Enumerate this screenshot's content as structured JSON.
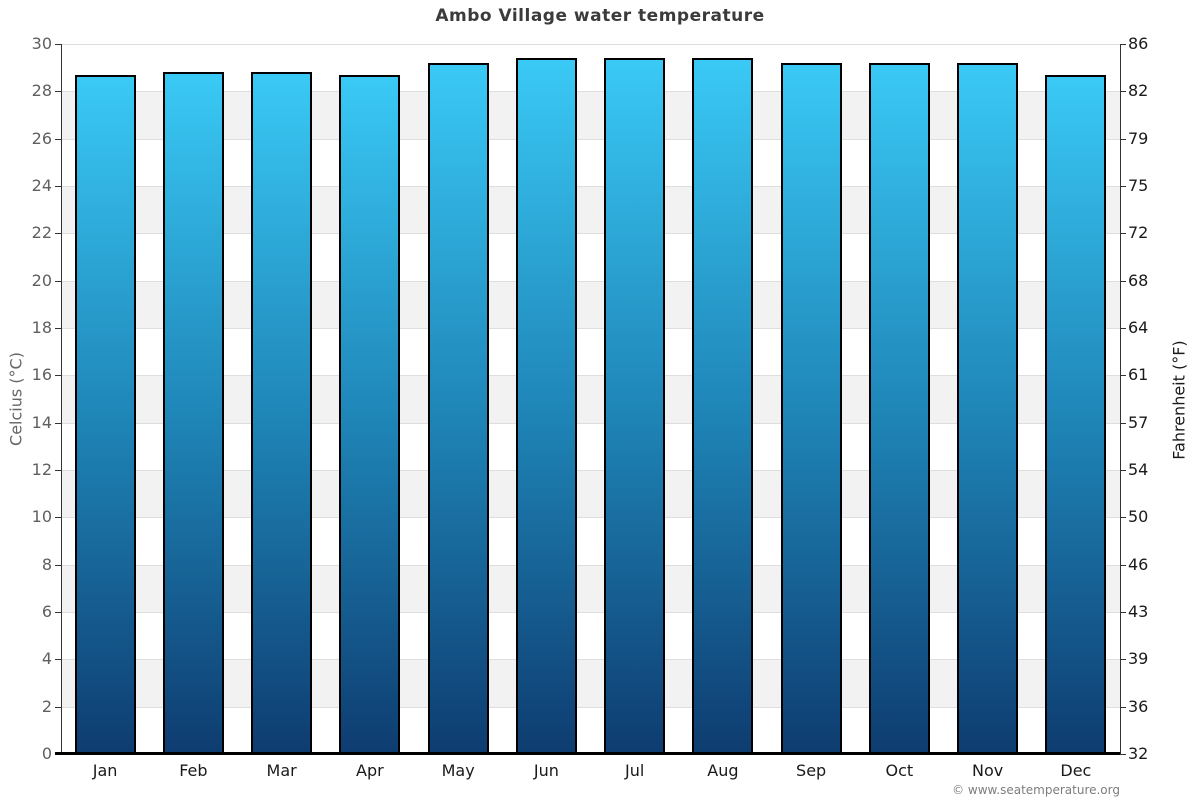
{
  "chart_data": {
    "type": "bar",
    "title": "Ambo Village water temperature",
    "categories": [
      "Jan",
      "Feb",
      "Mar",
      "Apr",
      "May",
      "Jun",
      "Jul",
      "Aug",
      "Sep",
      "Oct",
      "Nov",
      "Dec"
    ],
    "values": [
      28.7,
      28.8,
      28.8,
      28.7,
      29.2,
      29.4,
      29.4,
      29.4,
      29.2,
      29.2,
      29.2,
      28.7
    ],
    "unit": "°C",
    "ylim": [
      0,
      30
    ],
    "legend_position": "none",
    "grid": "alternating horizontal bands every 2 degrees",
    "y_axis_left": {
      "label": "Celcius (°C)",
      "ticks": [
        0,
        2,
        4,
        6,
        8,
        10,
        12,
        14,
        16,
        18,
        20,
        22,
        24,
        26,
        28,
        30
      ]
    },
    "y_axis_right": {
      "label": "Fahrenheit (°F)",
      "ticks": [
        32,
        36,
        39,
        43,
        46,
        50,
        54,
        57,
        61,
        64,
        68,
        72,
        75,
        79,
        82,
        86
      ]
    },
    "colors": {
      "bar_gradient_top": "#3ac9f5",
      "bar_gradient_mid": "#1f86b8",
      "bar_gradient_bottom": "#0e3c70",
      "bar_border": "#000000",
      "band_light": "#ffffff",
      "band_shade": "#f2f2f2",
      "gridline": "#dedede",
      "axis_line": "#333333",
      "bottom_axis": "#000000",
      "title_color": "#3b3b3b",
      "left_text": "#5f5f5f",
      "right_text": "#1a1a1a"
    }
  },
  "footer": {
    "copyright": "© www.seatemperature.org"
  }
}
